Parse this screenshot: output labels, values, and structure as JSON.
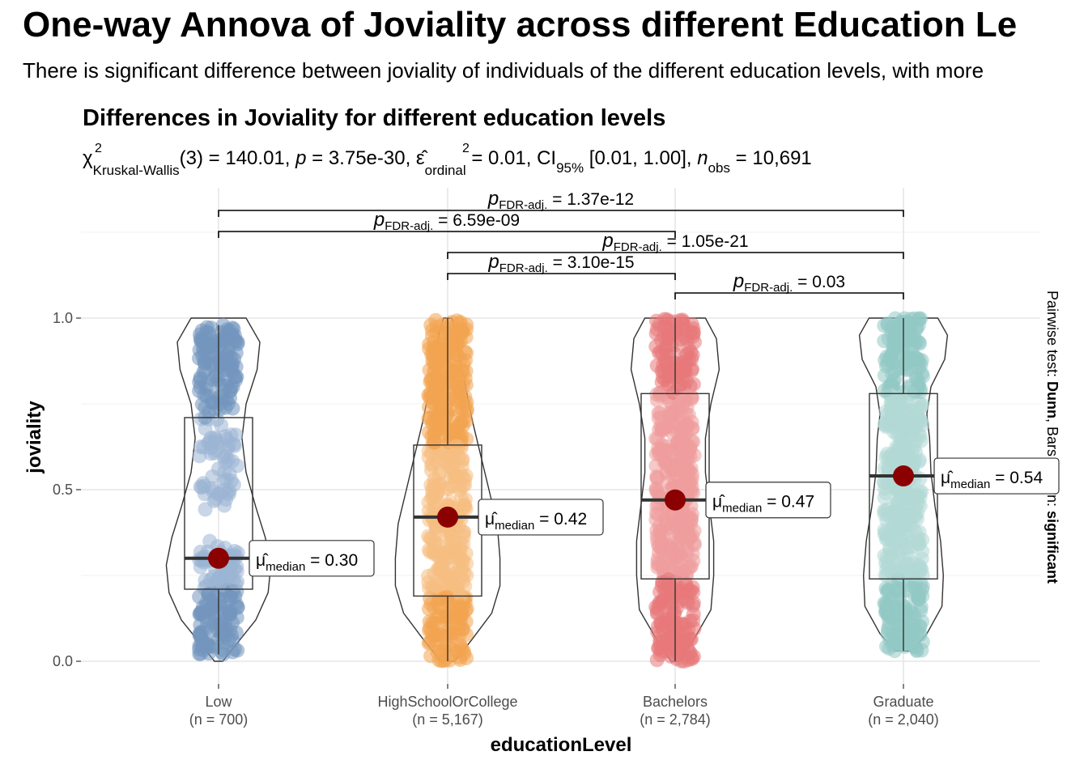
{
  "page": {
    "title": "One-way Annova of Joviality across different Education Le",
    "subtitle": "There is significant difference between joviality of individuals of the different education levels, with more"
  },
  "chart_data": {
    "type": "violin-box-scatter",
    "title": "Differences in Joviality for different education levels",
    "stats": {
      "chi_symbol": "χ",
      "chi_sup": "2",
      "test_sub": "Kruskal-Wallis",
      "df": "(3)",
      "statistic": "140.01",
      "p_symbol": "p",
      "p_value": "3.75e-30",
      "effect_symbol": "ε̂",
      "effect_sup": "2",
      "effect_sub": "ordinal",
      "effect_value": "0.01",
      "ci_label": "CI",
      "ci_sub": "95%",
      "ci_text": "[0.01, 1.00]",
      "n_symbol": "n",
      "n_sub": "obs",
      "n_value": "10,691"
    },
    "xlabel": "educationLevel",
    "ylabel": "joviality",
    "ylim": [
      0,
      1
    ],
    "yticks": [
      {
        "value": 0.0,
        "label": "0.0"
      },
      {
        "value": 0.5,
        "label": "0.5"
      },
      {
        "value": 1.0,
        "label": "1.0"
      }
    ],
    "groups": [
      {
        "name": "Low",
        "n_label": "(n = 700)",
        "color": "#7296BE",
        "light": "#9BB5D4",
        "median": 0.3,
        "median_label": "0.30",
        "q1": 0.21,
        "q3": 0.71,
        "min": 0.02,
        "max": 0.98
      },
      {
        "name": "HighSchoolOrCollege",
        "n_label": "(n = 5,167)",
        "color": "#F2A450",
        "light": "#F6BE82",
        "median": 0.42,
        "median_label": "0.42",
        "q1": 0.19,
        "q3": 0.63,
        "min": 0.0,
        "max": 1.0
      },
      {
        "name": "Bachelors",
        "n_label": "(n = 2,784)",
        "color": "#E8787A",
        "light": "#EE9C9D",
        "median": 0.47,
        "median_label": "0.47",
        "q1": 0.24,
        "q3": 0.78,
        "min": 0.0,
        "max": 1.0
      },
      {
        "name": "Graduate",
        "n_label": "(n = 2,040)",
        "color": "#91C8C4",
        "light": "#B2D9D6",
        "median": 0.54,
        "median_label": "0.54",
        "q1": 0.24,
        "q3": 0.78,
        "min": 0.03,
        "max": 1.0
      }
    ],
    "median_symbol": "μ̂",
    "median_sub": "median",
    "pairwise_note": {
      "prefix": "Pairwise test: ",
      "test": "Dunn",
      "middle": ", Bars shown: ",
      "shown": "significant"
    },
    "pairwise": [
      {
        "from": 0,
        "to": 3,
        "p_label": "1.37e-12"
      },
      {
        "from": 0,
        "to": 2,
        "p_label": "6.59e-09"
      },
      {
        "from": 1,
        "to": 3,
        "p_label": "1.05e-21"
      },
      {
        "from": 1,
        "to": 2,
        "p_label": "3.10e-15"
      },
      {
        "from": 2,
        "to": 3,
        "p_label": "0.03"
      }
    ],
    "p_symbol": "p",
    "p_sub": "FDR-adj.",
    "median_point_color": "#8B0000"
  }
}
